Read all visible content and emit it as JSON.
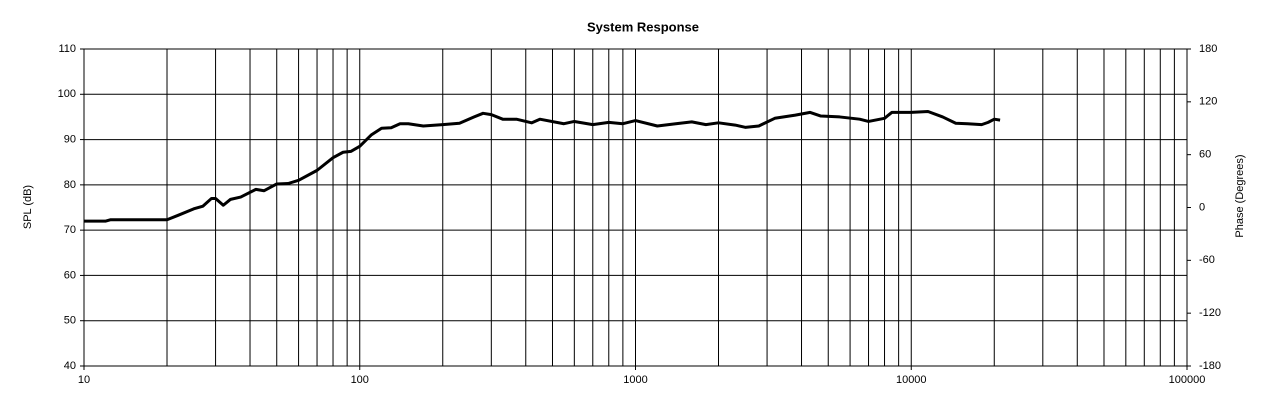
{
  "chart_data": {
    "type": "line",
    "title": "System Response",
    "y_label": "SPL (dB)",
    "y2_label": "Phase (Degrees)",
    "xscale": "log",
    "minor_xgrid": true,
    "grid": true,
    "xlim": [
      10,
      100000
    ],
    "xticks": [
      10,
      100,
      1000,
      10000,
      100000
    ],
    "ylim": [
      40,
      110
    ],
    "yticks": [
      40,
      50,
      60,
      70,
      80,
      90,
      100,
      110
    ],
    "y2lim": [
      -180,
      180
    ],
    "y2ticks": [
      -180,
      -120,
      -60,
      0,
      60,
      120,
      180
    ],
    "series": [
      {
        "name": "SPL",
        "color": "#000000",
        "x": [
          10,
          12,
          12.5,
          20,
          22,
          25,
          27,
          29,
          30,
          32,
          34,
          37,
          42,
          45,
          50,
          55,
          60,
          70,
          80,
          87,
          93,
          100,
          110,
          120,
          130,
          140,
          150,
          170,
          200,
          230,
          260,
          280,
          300,
          330,
          370,
          420,
          450,
          550,
          600,
          700,
          800,
          900,
          1000,
          1200,
          1400,
          1600,
          1800,
          2000,
          2300,
          2500,
          2800,
          3200,
          3800,
          4300,
          4700,
          5500,
          6500,
          7000,
          8000,
          8500,
          10000,
          11500,
          13000,
          14500,
          16000,
          18000,
          19000,
          20000,
          21000
        ],
        "values": [
          72,
          72,
          72.3,
          72.3,
          73.3,
          74.7,
          75.3,
          77,
          77,
          75.5,
          76.8,
          77.3,
          79,
          78.7,
          80.2,
          80.3,
          81,
          83.2,
          86,
          87.2,
          87.4,
          88.5,
          91,
          92.5,
          92.6,
          93.5,
          93.5,
          93,
          93.3,
          93.6,
          95,
          95.8,
          95.5,
          94.5,
          94.5,
          93.7,
          94.5,
          93.5,
          94,
          93.3,
          93.8,
          93.5,
          94.2,
          93,
          93.5,
          93.9,
          93.3,
          93.7,
          93.2,
          92.7,
          93,
          94.7,
          95.4,
          96,
          95.2,
          95,
          94.5,
          94,
          94.7,
          96,
          96,
          96.2,
          95,
          93.6,
          93.5,
          93.3,
          93.8,
          94.5,
          94.3
        ]
      }
    ]
  }
}
